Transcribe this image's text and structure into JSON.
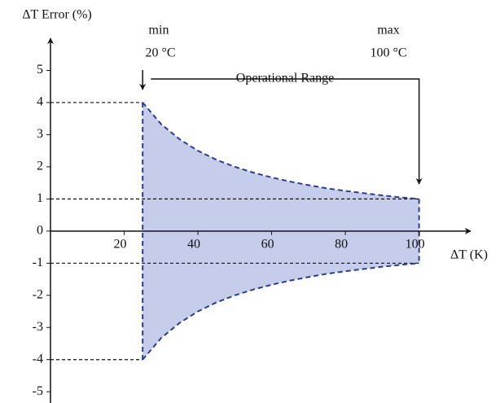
{
  "chart_data": {
    "type": "band",
    "y_label": "ΔT Error (%)",
    "x_label": "ΔT (K)",
    "annotations": {
      "min": "min",
      "min_temp": "20 °C",
      "max": "max",
      "max_temp": "100 °C",
      "range": "Operational Range"
    },
    "x": [
      25,
      30,
      35,
      40,
      45,
      50,
      55,
      60,
      65,
      70,
      75,
      80,
      85,
      90,
      95,
      100
    ],
    "series": [
      {
        "name": "upper",
        "color": "#2b3d8f",
        "values": [
          4,
          3.33,
          2.86,
          2.5,
          2.22,
          2,
          1.82,
          1.67,
          1.54,
          1.43,
          1.33,
          1.25,
          1.18,
          1.11,
          1.05,
          1
        ]
      },
      {
        "name": "lower",
        "color": "#2b3d8f",
        "values": [
          -4,
          -3.33,
          -2.86,
          -2.5,
          -2.22,
          -2,
          -1.82,
          -1.67,
          -1.54,
          -1.43,
          -1.33,
          -1.25,
          -1.18,
          -1.11,
          -1.05,
          -1
        ]
      }
    ],
    "fill_color": "#c6cdea",
    "xlim": [
      0,
      114
    ],
    "ylim": [
      -5.35,
      6
    ],
    "xticks": [
      20,
      40,
      60,
      80,
      100
    ],
    "yticks": [
      -5,
      -4,
      -3,
      -2,
      -1,
      0,
      1,
      2,
      3,
      4,
      5
    ]
  }
}
